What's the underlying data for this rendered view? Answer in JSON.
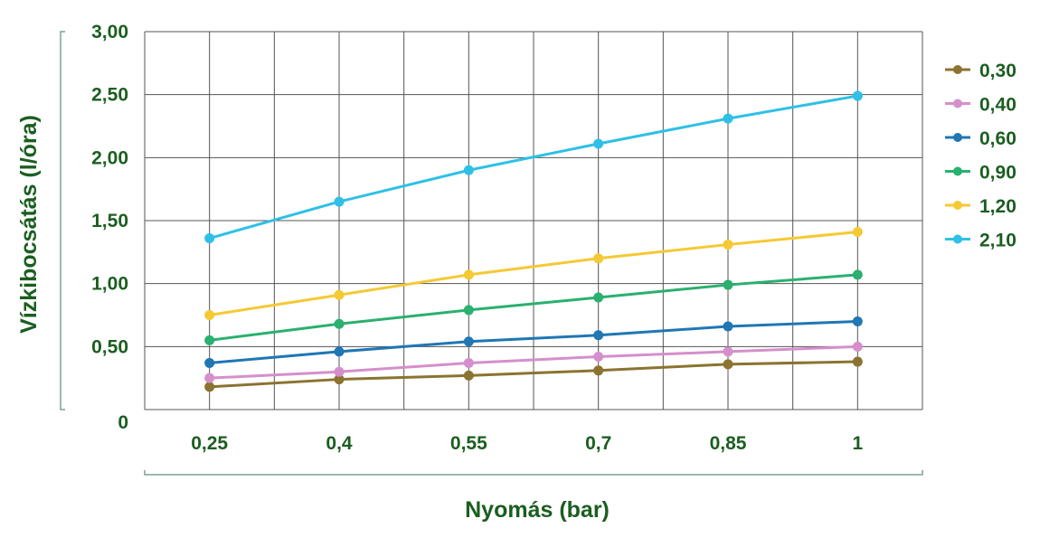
{
  "colors": {
    "text": "#1b5e20",
    "grid": "#555555",
    "bracket": "#7aa38f"
  },
  "chart_data": {
    "type": "line",
    "xlabel": "Nyomás (bar)",
    "ylabel": "Vízkibocsátás (l/óra)",
    "x": [
      "0,25",
      "0,4",
      "0,55",
      "0,7",
      "0,85",
      "1"
    ],
    "y_ticks": [
      "0",
      "0,50",
      "1,00",
      "1,50",
      "2,00",
      "2,50",
      "3,00"
    ],
    "ylim": [
      0,
      3
    ],
    "grid": true,
    "legend_position": "right",
    "series": [
      {
        "name": "0,30",
        "color": "#8b7330",
        "values": [
          0.18,
          0.24,
          0.27,
          0.31,
          0.36,
          0.38
        ]
      },
      {
        "name": "0,40",
        "color": "#d58fcb",
        "values": [
          0.25,
          0.3,
          0.37,
          0.42,
          0.46,
          0.5
        ]
      },
      {
        "name": "0,60",
        "color": "#1f77b4",
        "values": [
          0.37,
          0.46,
          0.54,
          0.59,
          0.66,
          0.7
        ]
      },
      {
        "name": "0,90",
        "color": "#2ab06f",
        "values": [
          0.55,
          0.68,
          0.79,
          0.89,
          0.99,
          1.07
        ]
      },
      {
        "name": "1,20",
        "color": "#f5c934",
        "values": [
          0.75,
          0.91,
          1.07,
          1.2,
          1.31,
          1.41
        ]
      },
      {
        "name": "2,10",
        "color": "#2ec0e6",
        "values": [
          1.36,
          1.65,
          1.9,
          2.11,
          2.31,
          2.49
        ]
      }
    ]
  }
}
